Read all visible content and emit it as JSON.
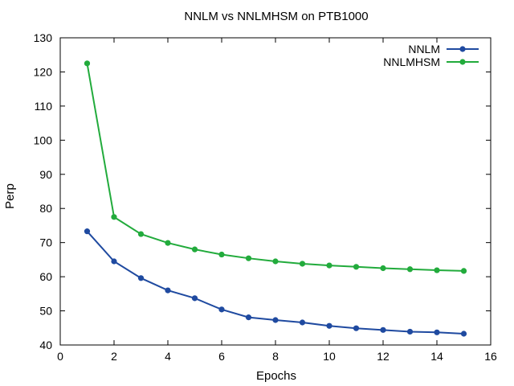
{
  "chart_data": {
    "type": "line",
    "title": "NNLM vs NNLMHSM on PTB1000",
    "xlabel": "Epochs",
    "ylabel": "Perp",
    "xlim": [
      0,
      16
    ],
    "ylim": [
      40,
      130
    ],
    "xticks": [
      0,
      2,
      4,
      6,
      8,
      10,
      12,
      14,
      16
    ],
    "yticks": [
      40,
      50,
      60,
      70,
      80,
      90,
      100,
      110,
      120,
      130
    ],
    "legend_position": "top-right",
    "grid": false,
    "x": [
      1,
      2,
      3,
      4,
      5,
      6,
      7,
      8,
      9,
      10,
      11,
      12,
      13,
      14,
      15
    ],
    "series": [
      {
        "name": "NNLM",
        "color": "#1f4aa0",
        "values": [
          73.3,
          64.5,
          59.6,
          56.0,
          53.7,
          50.4,
          48.1,
          47.3,
          46.6,
          45.6,
          44.9,
          44.4,
          43.9,
          43.7,
          43.3
        ]
      },
      {
        "name": "NNLMHSM",
        "color": "#22ab3c",
        "values": [
          122.5,
          77.5,
          72.5,
          69.9,
          68.0,
          66.5,
          65.4,
          64.5,
          63.8,
          63.3,
          62.9,
          62.5,
          62.2,
          61.9,
          61.7
        ]
      }
    ]
  }
}
